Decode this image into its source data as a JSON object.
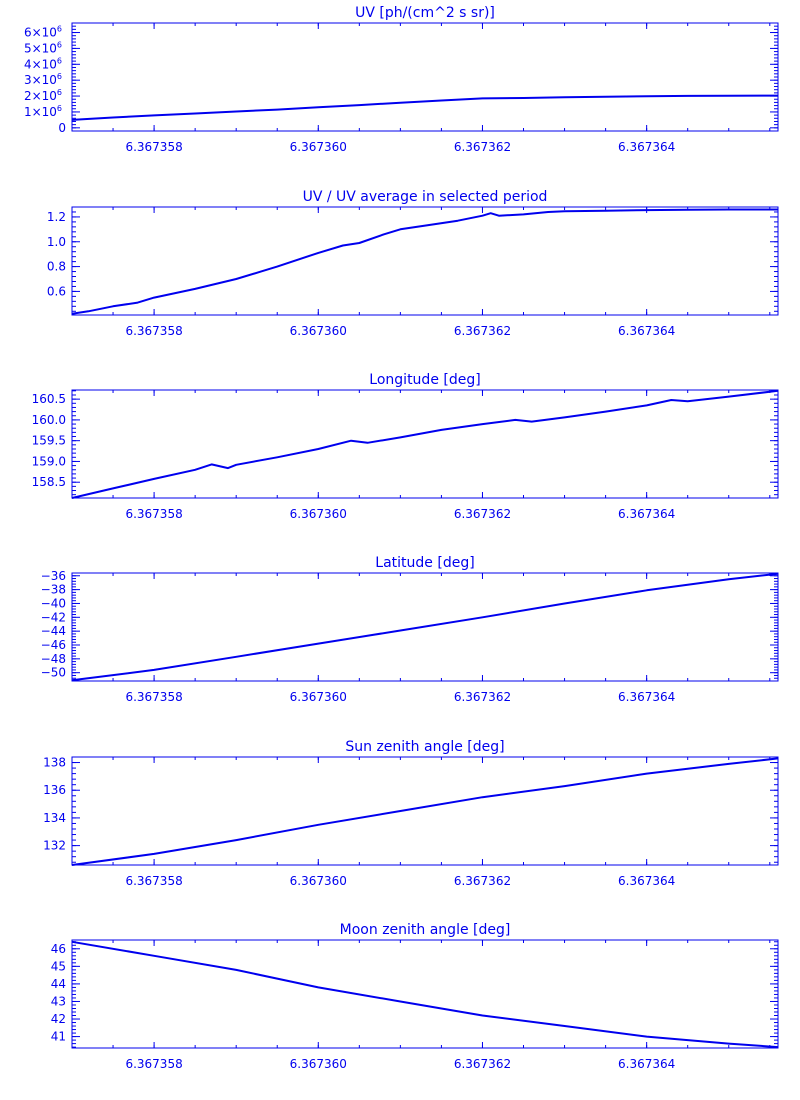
{
  "colors": {
    "ink": "#0000ee",
    "background": "#ffffff"
  },
  "x_tick_labels": [
    "6.367358",
    "6.367360",
    "6.367362",
    "6.367364"
  ],
  "chart_data": [
    {
      "type": "line",
      "title": "UV [ph/(cm^2 s sr)]",
      "xlabel": "",
      "ylabel": "",
      "xlim": [
        6.367357,
        6.3673656
      ],
      "ylim": [
        -200000,
        6600000
      ],
      "y_ticks": [
        {
          "value": 0,
          "base": "0",
          "exp": ""
        },
        {
          "value": 1000000,
          "base": "1×10",
          "exp": "6"
        },
        {
          "value": 2000000,
          "base": "2×10",
          "exp": "6"
        },
        {
          "value": 3000000,
          "base": "3×10",
          "exp": "6"
        },
        {
          "value": 4000000,
          "base": "4×10",
          "exp": "6"
        },
        {
          "value": 5000000,
          "base": "5×10",
          "exp": "6"
        },
        {
          "value": 6000000,
          "base": "6×10",
          "exp": "6"
        }
      ],
      "x": [
        6.367357,
        6.3673575,
        6.367358,
        6.3673585,
        6.367359,
        6.3673595,
        6.36736,
        6.3673605,
        6.367361,
        6.3673615,
        6.367362,
        6.3673625,
        6.367363,
        6.3673635,
        6.367364,
        6.3673645,
        6.367365,
        6.3673656
      ],
      "y": [
        500000,
        650000,
        780000,
        900000,
        1030000,
        1150000,
        1300000,
        1430000,
        1580000,
        1720000,
        1850000,
        1880000,
        1920000,
        1960000,
        1990000,
        2010000,
        2020000,
        2030000
      ]
    },
    {
      "type": "line",
      "title": "UV / UV average in selected period",
      "xlabel": "",
      "ylabel": "",
      "xlim": [
        6.367357,
        6.3673656
      ],
      "ylim": [
        0.41,
        1.28
      ],
      "y_ticks": [
        {
          "value": 0.6,
          "base": "0.6",
          "exp": ""
        },
        {
          "value": 0.8,
          "base": "0.8",
          "exp": ""
        },
        {
          "value": 1.0,
          "base": "1.0",
          "exp": ""
        },
        {
          "value": 1.2,
          "base": "1.2",
          "exp": ""
        }
      ],
      "x": [
        6.367357,
        6.3673572,
        6.3673575,
        6.3673578,
        6.367358,
        6.3673585,
        6.367359,
        6.3673593,
        6.3673595,
        6.36736,
        6.3673603,
        6.3673605,
        6.3673608,
        6.367361,
        6.3673613,
        6.3673617,
        6.367362,
        6.3673621,
        6.3673622,
        6.3673625,
        6.3673628,
        6.367363,
        6.3673635,
        6.367364,
        6.3673645,
        6.367365,
        6.3673656
      ],
      "y": [
        0.42,
        0.44,
        0.48,
        0.51,
        0.55,
        0.62,
        0.7,
        0.76,
        0.8,
        0.91,
        0.97,
        0.99,
        1.06,
        1.1,
        1.13,
        1.17,
        1.21,
        1.23,
        1.21,
        1.22,
        1.24,
        1.245,
        1.25,
        1.255,
        1.258,
        1.26,
        1.26
      ]
    },
    {
      "type": "line",
      "title": "Longitude [deg]",
      "xlabel": "",
      "ylabel": "",
      "xlim": [
        6.367357,
        6.3673656
      ],
      "ylim": [
        158.12,
        160.72
      ],
      "y_ticks": [
        {
          "value": 158.5,
          "base": "158.5",
          "exp": ""
        },
        {
          "value": 159.0,
          "base": "159.0",
          "exp": ""
        },
        {
          "value": 159.5,
          "base": "159.5",
          "exp": ""
        },
        {
          "value": 160.0,
          "base": "160.0",
          "exp": ""
        },
        {
          "value": 160.5,
          "base": "160.5",
          "exp": ""
        }
      ],
      "x": [
        6.367357,
        6.3673575,
        6.367358,
        6.3673585,
        6.3673587,
        6.3673589,
        6.367359,
        6.3673595,
        6.36736,
        6.3673604,
        6.3673606,
        6.367361,
        6.3673615,
        6.367362,
        6.3673624,
        6.3673626,
        6.367363,
        6.3673635,
        6.367364,
        6.3673643,
        6.3673645,
        6.367365,
        6.3673656
      ],
      "y": [
        158.12,
        158.35,
        158.58,
        158.8,
        158.93,
        158.84,
        158.92,
        159.1,
        159.3,
        159.5,
        159.45,
        159.58,
        159.76,
        159.9,
        160.0,
        159.96,
        160.06,
        160.2,
        160.35,
        160.48,
        160.45,
        160.56,
        160.7
      ]
    },
    {
      "type": "line",
      "title": "Latitude [deg]",
      "xlabel": "",
      "ylabel": "",
      "xlim": [
        6.367357,
        6.3673656
      ],
      "ylim": [
        -51.2,
        -35.6
      ],
      "y_ticks": [
        {
          "value": -50,
          "base": "−50",
          "exp": ""
        },
        {
          "value": -48,
          "base": "−48",
          "exp": ""
        },
        {
          "value": -46,
          "base": "−46",
          "exp": ""
        },
        {
          "value": -44,
          "base": "−44",
          "exp": ""
        },
        {
          "value": -42,
          "base": "−42",
          "exp": ""
        },
        {
          "value": -40,
          "base": "−40",
          "exp": ""
        },
        {
          "value": -38,
          "base": "−38",
          "exp": ""
        },
        {
          "value": -36,
          "base": "−36",
          "exp": ""
        }
      ],
      "x": [
        6.367357,
        6.367358,
        6.367359,
        6.36736,
        6.367361,
        6.367362,
        6.367363,
        6.367364,
        6.367365,
        6.3673656
      ],
      "y": [
        -51.1,
        -49.6,
        -47.7,
        -45.8,
        -43.9,
        -42.0,
        -40.0,
        -38.1,
        -36.5,
        -35.7
      ]
    },
    {
      "type": "line",
      "title": "Sun zenith angle [deg]",
      "xlabel": "",
      "ylabel": "",
      "xlim": [
        6.367357,
        6.3673656
      ],
      "ylim": [
        130.6,
        138.4
      ],
      "y_ticks": [
        {
          "value": 132,
          "base": "132",
          "exp": ""
        },
        {
          "value": 134,
          "base": "134",
          "exp": ""
        },
        {
          "value": 136,
          "base": "136",
          "exp": ""
        },
        {
          "value": 138,
          "base": "138",
          "exp": ""
        }
      ],
      "x": [
        6.367357,
        6.367358,
        6.367359,
        6.36736,
        6.367361,
        6.367362,
        6.367363,
        6.367364,
        6.367365,
        6.3673656
      ],
      "y": [
        130.6,
        131.4,
        132.4,
        133.5,
        134.5,
        135.5,
        136.3,
        137.2,
        137.9,
        138.3
      ]
    },
    {
      "type": "line",
      "title": "Moon zenith angle [deg]",
      "xlabel": "",
      "ylabel": "",
      "xlim": [
        6.367357,
        6.3673656
      ],
      "ylim": [
        40.35,
        46.5
      ],
      "y_ticks": [
        {
          "value": 41,
          "base": "41",
          "exp": ""
        },
        {
          "value": 42,
          "base": "42",
          "exp": ""
        },
        {
          "value": 43,
          "base": "43",
          "exp": ""
        },
        {
          "value": 44,
          "base": "44",
          "exp": ""
        },
        {
          "value": 45,
          "base": "45",
          "exp": ""
        },
        {
          "value": 46,
          "base": "46",
          "exp": ""
        }
      ],
      "x": [
        6.367357,
        6.367358,
        6.367359,
        6.36736,
        6.367361,
        6.367362,
        6.367363,
        6.367364,
        6.367365,
        6.3673656
      ],
      "y": [
        46.4,
        45.6,
        44.8,
        43.8,
        43.0,
        42.2,
        41.6,
        41.0,
        40.6,
        40.4
      ]
    }
  ]
}
